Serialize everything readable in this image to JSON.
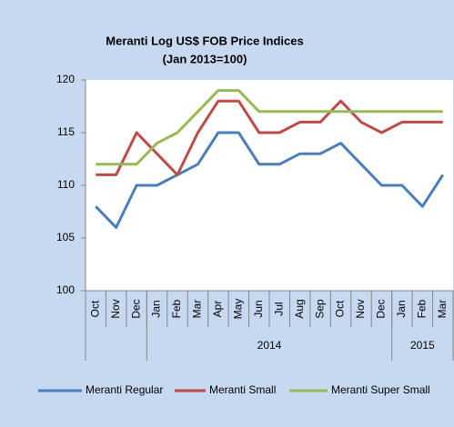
{
  "chart_data": {
    "type": "line",
    "title": "Meranti Log US$ FOB Price Indices",
    "subtitle": "(Jan 2013=100)",
    "categories": [
      "Oct",
      "Nov",
      "Dec",
      "Jan",
      "Feb",
      "Mar",
      "Apr",
      "May",
      "Jun",
      "Jul",
      "Aug",
      "Sep",
      "Oct",
      "Nov",
      "Dec",
      "Jan",
      "Feb",
      "Mar"
    ],
    "groups": [
      {
        "label": null,
        "span": 3
      },
      {
        "label": "2014",
        "span": 12
      },
      {
        "label": "2015",
        "span": 3
      }
    ],
    "series": [
      {
        "name": "Meranti Regular",
        "color": "#4a7ebb",
        "values": [
          108,
          106,
          110,
          110,
          111,
          112,
          115,
          115,
          112,
          112,
          113,
          113,
          114,
          112,
          110,
          110,
          108,
          111
        ]
      },
      {
        "name": "Meranti Small",
        "color": "#be4b48",
        "values": [
          111,
          111,
          115,
          113,
          111,
          115,
          118,
          118,
          115,
          115,
          116,
          116,
          118,
          116,
          115,
          116,
          116,
          116
        ]
      },
      {
        "name": "Meranti Super Small",
        "color": "#98b954",
        "values": [
          112,
          112,
          112,
          114,
          115,
          117,
          119,
          119,
          117,
          117,
          117,
          117,
          117,
          117,
          117,
          117,
          117,
          117
        ]
      }
    ],
    "ylim": [
      100,
      120
    ],
    "yticks": [
      100,
      105,
      110,
      115,
      120
    ],
    "grid": false,
    "legend": "bottom"
  }
}
